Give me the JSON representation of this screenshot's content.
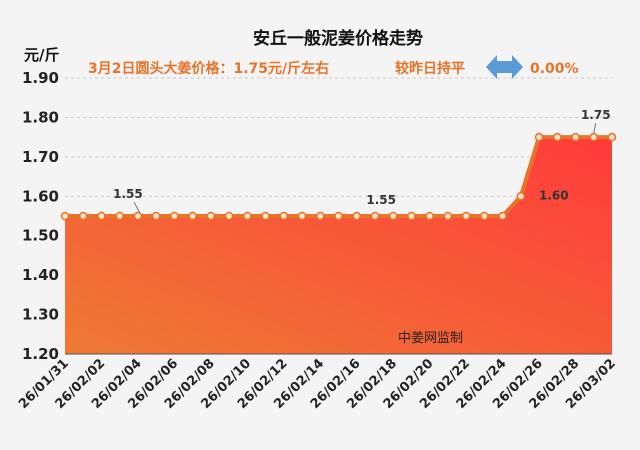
{
  "chart_data": {
    "type": "area",
    "title": "安丘一般泥姜价格走势",
    "subtitle_left": "3月2日圆头大姜价格：1.75元/斤左右",
    "subtitle_right": "较昨日持平",
    "change_text": "0.00%",
    "unit_label": "元/斤",
    "watermark": "中姜网监制",
    "ylim": [
      1.2,
      1.9
    ],
    "yticks": [
      "1.90",
      "1.80",
      "1.70",
      "1.60",
      "1.50",
      "1.40",
      "1.30",
      "1.20"
    ],
    "x_tick_labels": [
      "26/01/31",
      "26/02/02",
      "26/02/04",
      "26/02/06",
      "26/02/08",
      "26/02/10",
      "26/02/12",
      "26/02/14",
      "26/02/16",
      "26/02/18",
      "26/02/20",
      "26/02/22",
      "26/02/24",
      "26/02/26",
      "26/02/28",
      "26/03/02"
    ],
    "x": [
      "26/01/31",
      "26/02/01",
      "26/02/02",
      "26/02/03",
      "26/02/04",
      "26/02/05",
      "26/02/06",
      "26/02/07",
      "26/02/08",
      "26/02/09",
      "26/02/10",
      "26/02/11",
      "26/02/12",
      "26/02/13",
      "26/02/14",
      "26/02/15",
      "26/02/16",
      "26/02/17",
      "26/02/18",
      "26/02/19",
      "26/02/20",
      "26/02/21",
      "26/02/22",
      "26/02/23",
      "26/02/24",
      "26/02/25",
      "26/02/26",
      "26/02/27",
      "26/02/28",
      "26/03/01",
      "26/03/02"
    ],
    "values": [
      1.55,
      1.55,
      1.55,
      1.55,
      1.55,
      1.55,
      1.55,
      1.55,
      1.55,
      1.55,
      1.55,
      1.55,
      1.55,
      1.55,
      1.55,
      1.55,
      1.55,
      1.55,
      1.55,
      1.55,
      1.55,
      1.55,
      1.55,
      1.55,
      1.55,
      1.6,
      1.75,
      1.75,
      1.75,
      1.75,
      1.75
    ],
    "data_labels": [
      {
        "date": "26/02/04",
        "text": "1.55"
      },
      {
        "date": "26/02/18",
        "text": "1.55"
      },
      {
        "date": "26/02/25",
        "text": "1.60"
      },
      {
        "date": "26/03/01",
        "text": "1.75"
      }
    ],
    "grid": true,
    "colors": {
      "fill_top": "#ff3b3b",
      "fill_bottom": "#ee7a33",
      "line": "#e8742a",
      "marker_fill": "#fbe3c8",
      "subtitle": "#e8742a",
      "arrow": "#5b9bd5"
    }
  }
}
